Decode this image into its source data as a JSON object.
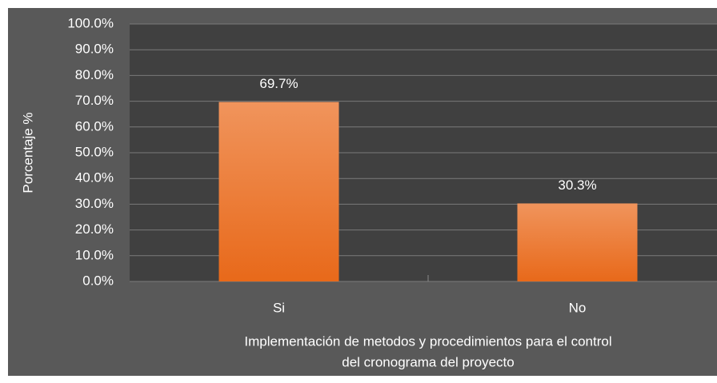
{
  "chart_data": {
    "type": "bar",
    "ylabel": "Porcentaje %",
    "xlabel": [
      "Implementación de metodos y procedimientos para el control",
      "del cronograma del proyecto"
    ],
    "categories": [
      "Si",
      "No"
    ],
    "values": [
      69.7,
      30.3
    ],
    "value_labels": [
      "69.7%",
      "30.3%"
    ],
    "color": "#ef7b2c",
    "ylim": [
      0,
      100
    ],
    "yticks": [
      {
        "value": 0,
        "label": "0.0%"
      },
      {
        "value": 10,
        "label": "10.0%"
      },
      {
        "value": 20,
        "label": "20.0%"
      },
      {
        "value": 30,
        "label": "30.0%"
      },
      {
        "value": 40,
        "label": "40.0%"
      },
      {
        "value": 50,
        "label": "50.0%"
      },
      {
        "value": 60,
        "label": "60.0%"
      },
      {
        "value": 70,
        "label": "70.0%"
      },
      {
        "value": 80,
        "label": "80.0%"
      },
      {
        "value": 90,
        "label": "90.0%"
      },
      {
        "value": 100,
        "label": "100.0%"
      }
    ],
    "grid": true
  }
}
